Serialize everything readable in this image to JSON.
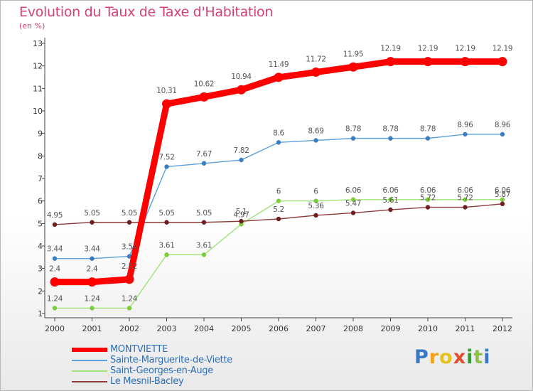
{
  "chart_data": {
    "type": "line",
    "title": "Evolution du Taux de Taxe d'Habitation",
    "ylabel": "(en %)",
    "xlabel": "",
    "ylim": [
      1,
      13
    ],
    "yticks": [
      "1",
      "2",
      "3",
      "4",
      "5",
      "6",
      "7",
      "8",
      "9",
      "10",
      "11",
      "12",
      "13"
    ],
    "categories": [
      "2000",
      "2001",
      "2002",
      "2003",
      "2004",
      "2005",
      "2006",
      "2007",
      "2008",
      "2009",
      "2010",
      "2011",
      "2012"
    ],
    "series": [
      {
        "name": "MONTVIETTE",
        "color": "#ff0000",
        "emphasis": true,
        "values": [
          2.4,
          2.4,
          2.52,
          10.31,
          10.62,
          10.94,
          11.49,
          11.72,
          11.95,
          12.19,
          12.19,
          12.19,
          12.19
        ],
        "labels": [
          "2.4",
          "2.4",
          "2.52",
          "10.31",
          "10.62",
          "10.94",
          "11.49",
          "11.72",
          "11.95",
          "12.19",
          "12.19",
          "12.19",
          "12.19"
        ]
      },
      {
        "name": "Sainte-Marguerite-de-Viette",
        "color": "#5c9fd9",
        "marker_color": "#3b7dc4",
        "values": [
          3.44,
          3.44,
          3.54,
          7.52,
          7.67,
          7.82,
          8.6,
          8.69,
          8.78,
          8.78,
          8.78,
          8.96,
          8.96
        ],
        "labels": [
          "3.44",
          "3.44",
          "3.54",
          "7.52",
          "7.67",
          "7.82",
          "8.6",
          "8.69",
          "8.78",
          "8.78",
          "8.78",
          "8.96",
          "8.96"
        ]
      },
      {
        "name": "Saint-Georges-en-Auge",
        "color": "#a2e27a",
        "marker_color": "#7ccc3e",
        "values": [
          1.24,
          1.24,
          1.24,
          3.61,
          3.61,
          4.97,
          6,
          6,
          6.06,
          6.06,
          6.06,
          6.06,
          6.06
        ],
        "labels": [
          "1.24",
          "1.24",
          "1.24",
          "3.61",
          "3.61",
          "4.97",
          "6",
          "6",
          "6.06",
          "6.06",
          "6.06",
          "6.06",
          "6.06"
        ]
      },
      {
        "name": "Le Mesnil-Bacley",
        "color": "#8b3a3a",
        "marker_color": "#6e1e1e",
        "values": [
          4.95,
          5.05,
          5.05,
          5.05,
          5.05,
          5.1,
          5.2,
          5.36,
          5.47,
          5.61,
          5.72,
          5.72,
          5.87
        ],
        "labels": [
          "4.95",
          "5.05",
          "5.05",
          "5.05",
          "5.05",
          "5.1",
          "5.2",
          "5.36",
          "5.47",
          "5.61",
          "5.72",
          "5.72",
          "5.87"
        ]
      }
    ],
    "legend_position": "bottom-left",
    "grid": false
  },
  "brand": {
    "letters": [
      "P",
      "r",
      "o",
      "x",
      "i",
      "t",
      "i"
    ]
  }
}
